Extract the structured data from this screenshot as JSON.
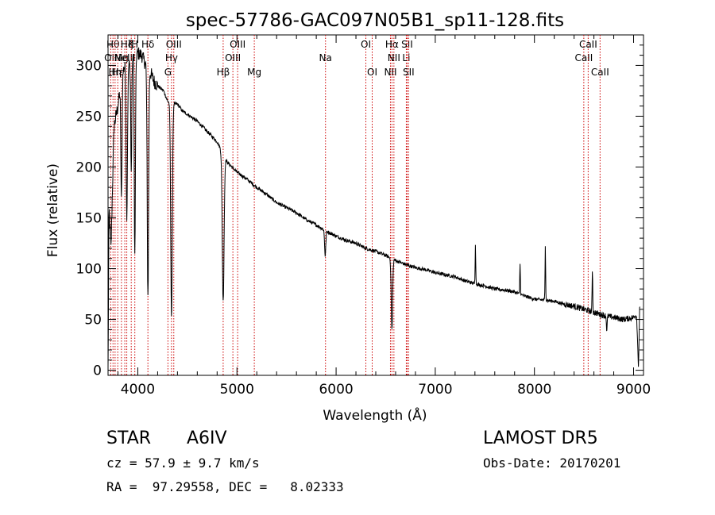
{
  "chart_data": {
    "type": "line",
    "title": "spec-57786-GAC097N05B1_sp11-128.fits",
    "xlabel": "Wavelength (Å)",
    "ylabel": "Flux (relative)",
    "xlim": [
      3700,
      9100
    ],
    "ylim": [
      -5,
      330
    ],
    "xticks": [
      4000,
      5000,
      6000,
      7000,
      8000,
      9000
    ],
    "yticks": [
      0,
      50,
      100,
      150,
      200,
      250,
      300
    ],
    "grid": false,
    "line_color": "#000000",
    "marker_color": "#cc0000",
    "continuum": [
      [
        3700,
        0
      ],
      [
        3710,
        160
      ],
      [
        3730,
        120
      ],
      [
        3760,
        240
      ],
      [
        3800,
        260
      ],
      [
        3840,
        290
      ],
      [
        3880,
        305
      ],
      [
        3920,
        300
      ],
      [
        3960,
        310
      ],
      [
        4000,
        312
      ],
      [
        4040,
        310
      ],
      [
        4060,
        305
      ],
      [
        4120,
        295
      ],
      [
        4160,
        285
      ],
      [
        4200,
        280
      ],
      [
        4260,
        275
      ],
      [
        4300,
        265
      ],
      [
        4340,
        262
      ],
      [
        4400,
        262
      ],
      [
        4450,
        255
      ],
      [
        4500,
        252
      ],
      [
        4600,
        245
      ],
      [
        4700,
        235
      ],
      [
        4800,
        225
      ],
      [
        4850,
        215
      ],
      [
        4900,
        205
      ],
      [
        5000,
        195
      ],
      [
        5100,
        188
      ],
      [
        5200,
        180
      ],
      [
        5300,
        173
      ],
      [
        5400,
        165
      ],
      [
        5500,
        160
      ],
      [
        5600,
        155
      ],
      [
        5700,
        148
      ],
      [
        5800,
        143
      ],
      [
        5900,
        137
      ],
      [
        6000,
        132
      ],
      [
        6100,
        128
      ],
      [
        6200,
        125
      ],
      [
        6300,
        120
      ],
      [
        6400,
        117
      ],
      [
        6500,
        113
      ],
      [
        6600,
        108
      ],
      [
        6700,
        104
      ],
      [
        6800,
        101
      ],
      [
        6900,
        99
      ],
      [
        7000,
        96
      ],
      [
        7100,
        94
      ],
      [
        7200,
        92
      ],
      [
        7300,
        88
      ],
      [
        7400,
        85
      ],
      [
        7500,
        83
      ],
      [
        7600,
        80
      ],
      [
        7700,
        79
      ],
      [
        7800,
        77
      ],
      [
        7900,
        73
      ],
      [
        8000,
        70
      ],
      [
        8100,
        69
      ],
      [
        8200,
        68
      ],
      [
        8300,
        65
      ],
      [
        8400,
        63
      ],
      [
        8500,
        60
      ],
      [
        8600,
        57
      ],
      [
        8700,
        54
      ],
      [
        8800,
        52
      ],
      [
        8900,
        50
      ],
      [
        9000,
        52
      ],
      [
        9030,
        55
      ],
      [
        9050,
        2
      ],
      [
        9060,
        60
      ]
    ],
    "features": [
      {
        "center": 3835,
        "depth": 120,
        "width": 6
      },
      {
        "center": 3889,
        "depth": 150,
        "width": 7
      },
      {
        "center": 3934,
        "depth": 110,
        "width": 5
      },
      {
        "center": 3970,
        "depth": 200,
        "width": 6
      },
      {
        "center": 4102,
        "depth": 225,
        "width": 7
      },
      {
        "center": 4340,
        "depth": 210,
        "width": 8
      },
      {
        "center": 4861,
        "depth": 145,
        "width": 9
      },
      {
        "center": 5890,
        "depth": 25,
        "width": 6
      },
      {
        "center": 6563,
        "depth": 70,
        "width": 7
      },
      {
        "center": 7405,
        "depth": -40,
        "width": 3
      },
      {
        "center": 7855,
        "depth": -30,
        "width": 3
      },
      {
        "center": 8110,
        "depth": -55,
        "width": 3
      },
      {
        "center": 8585,
        "depth": -42,
        "width": 3
      },
      {
        "center": 8730,
        "depth": 14,
        "width": 4
      }
    ],
    "lines": [
      {
        "wl": 3727,
        "label": "OII",
        "row": 1
      },
      {
        "wl": 3750,
        "label": "Hθ",
        "row": 0
      },
      {
        "wl": 3771,
        "label": "Hη",
        "row": 2
      },
      {
        "wl": 3798,
        "label": "Hε",
        "row": 2
      },
      {
        "wl": 3835,
        "label": "Mg",
        "row": 1
      },
      {
        "wl": 3869,
        "label": "NeIII",
        "row": 1
      },
      {
        "wl": 3889,
        "label": "Hζ",
        "row": 0
      },
      {
        "wl": 3934,
        "label": "K",
        "row": 0
      },
      {
        "wl": 3970,
        "label": "H",
        "row": 0
      },
      {
        "wl": 4102,
        "label": "Hδ",
        "row": 0
      },
      {
        "wl": 4304,
        "label": "G",
        "row": 2
      },
      {
        "wl": 4340,
        "label": "Hγ",
        "row": 1
      },
      {
        "wl": 4363,
        "label": "OIII",
        "row": 0
      },
      {
        "wl": 4861,
        "label": "Hβ",
        "row": 2
      },
      {
        "wl": 4959,
        "label": "OIII",
        "row": 1
      },
      {
        "wl": 5007,
        "label": "OIII",
        "row": 0
      },
      {
        "wl": 5175,
        "label": "Mg",
        "row": 2
      },
      {
        "wl": 5893,
        "label": "Na",
        "row": 1
      },
      {
        "wl": 6300,
        "label": "OI",
        "row": 0
      },
      {
        "wl": 6364,
        "label": "OI",
        "row": 2
      },
      {
        "wl": 6548,
        "label": "NII",
        "row": 2
      },
      {
        "wl": 6563,
        "label": "Hα",
        "row": 0
      },
      {
        "wl": 6583,
        "label": "NII",
        "row": 1
      },
      {
        "wl": 6708,
        "label": "Li",
        "row": 1
      },
      {
        "wl": 6716,
        "label": "SII",
        "row": 0
      },
      {
        "wl": 6731,
        "label": "SII",
        "row": 2
      },
      {
        "wl": 8498,
        "label": "CaII",
        "row": 1
      },
      {
        "wl": 8542,
        "label": "CaII",
        "row": 0
      },
      {
        "wl": 8662,
        "label": "CaII",
        "row": 2
      }
    ]
  },
  "info": {
    "class": "STAR",
    "subclass": "A6IV",
    "survey": "LAMOST DR5",
    "cz": "cz = 57.9 ± 9.7 km/s",
    "obs_date": "Obs-Date: 20170201",
    "coords": "RA =  97.29558, DEC =   8.02333"
  }
}
